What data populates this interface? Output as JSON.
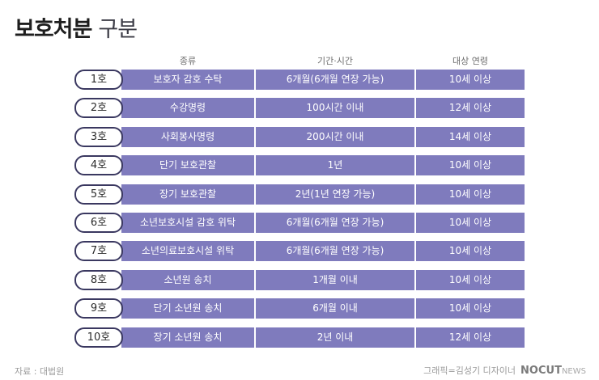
{
  "title": {
    "bold": "보호처분",
    "light": "구분"
  },
  "headers": {
    "type": "종류",
    "period": "기간·시간",
    "age": "대상 연령"
  },
  "rows": [
    {
      "no": "1호",
      "type": "보호자 감호 수탁",
      "period": "6개월(6개월 연장 가능)",
      "age": "10세 이상"
    },
    {
      "no": "2호",
      "type": "수강명령",
      "period": "100시간 이내",
      "age": "12세 이상"
    },
    {
      "no": "3호",
      "type": "사회봉사명령",
      "period": "200시간 이내",
      "age": "14세 이상"
    },
    {
      "no": "4호",
      "type": "단기 보호관찰",
      "period": "1년",
      "age": "10세 이상"
    },
    {
      "no": "5호",
      "type": "장기 보호관찰",
      "period": "2년(1년 연장 가능)",
      "age": "10세 이상"
    },
    {
      "no": "6호",
      "type": "소년보호시설 감호 위탁",
      "period": "6개월(6개월 연장 가능)",
      "age": "10세 이상"
    },
    {
      "no": "7호",
      "type": "소년의료보호시설 위탁",
      "period": "6개월(6개월 연장 가능)",
      "age": "10세 이상"
    },
    {
      "no": "8호",
      "type": "소년원 송치",
      "period": "1개월 이내",
      "age": "10세 이상"
    },
    {
      "no": "9호",
      "type": "단기 소년원 송치",
      "period": "6개월 이내",
      "age": "10세 이상"
    },
    {
      "no": "10호",
      "type": "장기 소년원 송치",
      "period": "2년 이내",
      "age": "12세 이상"
    }
  ],
  "footer": {
    "source": "자료 : 대법원",
    "credit": "그래픽=김성기 디자이너",
    "logo_strong": "NOCUT",
    "logo_light": "NEWS"
  },
  "colors": {
    "cell": "#7f7bbd",
    "pill_border": "#3a3860"
  }
}
